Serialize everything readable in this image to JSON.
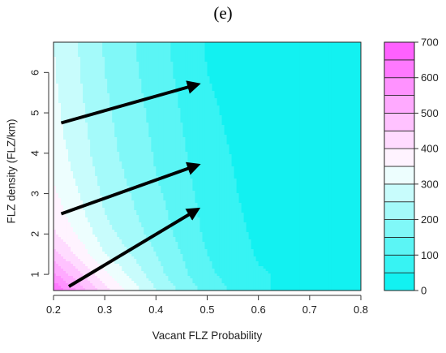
{
  "chart_data": {
    "type": "heatmap",
    "panel_label": "(e)",
    "title": "",
    "xlabel": "Vacant FLZ Probability",
    "ylabel": "FLZ density (FLZ/km)",
    "xlim": [
      0.2,
      0.8
    ],
    "ylim": [
      0.6,
      6.75
    ],
    "x_ticks": [
      0.2,
      0.3,
      0.4,
      0.5,
      0.6,
      0.7,
      0.8
    ],
    "y_ticks": [
      1,
      2,
      3,
      4,
      5,
      6
    ],
    "x_tick_labels": [
      "0.2",
      "0.3",
      "0.4",
      "0.5",
      "0.6",
      "0.7",
      "0.8"
    ],
    "y_tick_labels": [
      "1",
      "2",
      "3",
      "4",
      "5",
      "6"
    ],
    "colorbar": {
      "min": 0,
      "max": 700,
      "levels": [
        0,
        50,
        100,
        150,
        200,
        250,
        300,
        350,
        400,
        450,
        500,
        550,
        600,
        650,
        700
      ],
      "tick_values": [
        0,
        100,
        200,
        300,
        400,
        500,
        600,
        700
      ],
      "tick_labels": [
        "0",
        "100",
        "200",
        "300",
        "400",
        "500",
        "600",
        "700"
      ],
      "low_color": "#00f0f0",
      "mid_color": "#ffffff",
      "high_color": "#ff55ff"
    },
    "grid_x": [
      0.2,
      0.3,
      0.4,
      0.5,
      0.6,
      0.7,
      0.8
    ],
    "grid_y": [
      0.6,
      1.0,
      1.5,
      2.0,
      2.5,
      3.0,
      3.5,
      4.0,
      4.5,
      5.0,
      5.5,
      6.0,
      6.75
    ],
    "z": [
      [
        650,
        420,
        250,
        130,
        55,
        35,
        25
      ],
      [
        560,
        360,
        220,
        110,
        55,
        35,
        25
      ],
      [
        470,
        300,
        200,
        100,
        45,
        25,
        15
      ],
      [
        410,
        270,
        180,
        90,
        40,
        20,
        8
      ],
      [
        380,
        250,
        170,
        85,
        35,
        15,
        5
      ],
      [
        360,
        240,
        160,
        80,
        30,
        12,
        4
      ],
      [
        340,
        230,
        150,
        75,
        28,
        10,
        3
      ],
      [
        330,
        220,
        145,
        70,
        25,
        8,
        2
      ],
      [
        320,
        215,
        140,
        65,
        22,
        6,
        2
      ],
      [
        315,
        210,
        135,
        60,
        20,
        5,
        1
      ],
      [
        310,
        205,
        130,
        55,
        18,
        4,
        1
      ],
      [
        305,
        200,
        125,
        50,
        16,
        4,
        0
      ],
      [
        300,
        195,
        120,
        45,
        14,
        3,
        0
      ]
    ],
    "arrows": [
      {
        "from": [
          0.215,
          4.75
        ],
        "to": [
          0.48,
          5.7
        ]
      },
      {
        "from": [
          0.215,
          2.5
        ],
        "to": [
          0.48,
          3.7
        ]
      },
      {
        "from": [
          0.23,
          0.7
        ],
        "to": [
          0.48,
          2.6
        ]
      }
    ]
  }
}
